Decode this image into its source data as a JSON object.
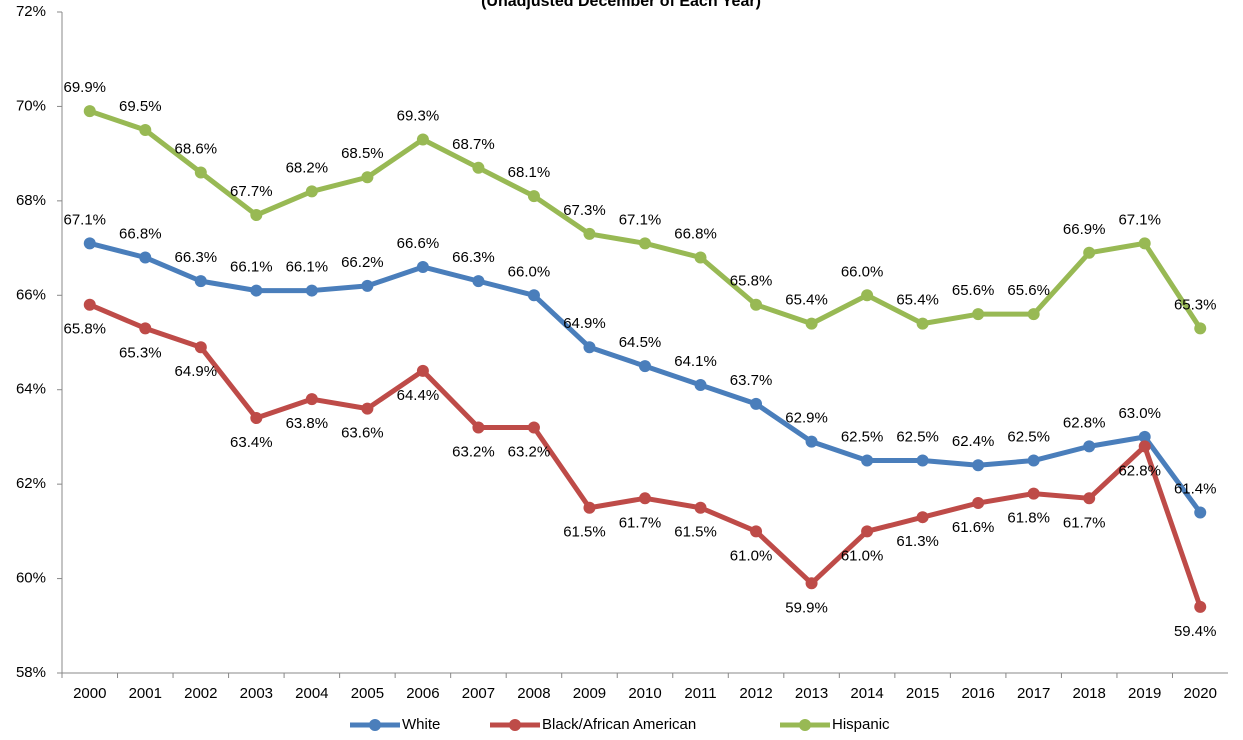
{
  "chart_data": {
    "type": "line",
    "title": "(Unadjusted December of Each Year)",
    "categories": [
      "2000",
      "2001",
      "2002",
      "2003",
      "2004",
      "2005",
      "2006",
      "2007",
      "2008",
      "2009",
      "2010",
      "2011",
      "2012",
      "2013",
      "2014",
      "2015",
      "2016",
      "2017",
      "2018",
      "2019",
      "2020"
    ],
    "series": [
      {
        "name": "White",
        "color": "#4a7ebb",
        "values": [
          67.1,
          66.8,
          66.3,
          66.1,
          66.1,
          66.2,
          66.6,
          66.3,
          66.0,
          64.9,
          64.5,
          64.1,
          63.7,
          62.9,
          62.5,
          62.5,
          62.4,
          62.5,
          62.8,
          63.0,
          61.4
        ],
        "value_labels": [
          "67.1%",
          "66.8%",
          "66.3%",
          "66.1%",
          "66.1%",
          "66.2%",
          "66.6%",
          "66.3%",
          "66.0%",
          "64.9%",
          "64.5%",
          "64.1%",
          "63.7%",
          "62.9%",
          "62.5%",
          "62.5%",
          "62.4%",
          "62.5%",
          "62.8%",
          "63.0%",
          "61.4%"
        ]
      },
      {
        "name": "Black/African American",
        "color": "#be4b48",
        "values": [
          65.8,
          65.3,
          64.9,
          63.4,
          63.8,
          63.6,
          64.4,
          63.2,
          63.2,
          61.5,
          61.7,
          61.5,
          61.0,
          59.9,
          61.0,
          61.3,
          61.6,
          61.8,
          61.7,
          62.8,
          59.4
        ],
        "value_labels": [
          "65.8%",
          "65.3%",
          "64.9%",
          "63.4%",
          "63.8%",
          "63.6%",
          "64.4%",
          "63.2%",
          "63.2%",
          "61.5%",
          "61.7%",
          "61.5%",
          "61.0%",
          "59.9%",
          "61.0%",
          "61.3%",
          "61.6%",
          "61.8%",
          "61.7%",
          "62.8%",
          "59.4%"
        ]
      },
      {
        "name": "Hispanic",
        "color": "#98b954",
        "values": [
          69.9,
          69.5,
          68.6,
          67.7,
          68.2,
          68.5,
          69.3,
          68.7,
          68.1,
          67.3,
          67.1,
          66.8,
          65.8,
          65.4,
          66.0,
          65.4,
          65.6,
          65.6,
          66.9,
          67.1,
          65.3
        ],
        "value_labels": [
          "69.9%",
          "69.5%",
          "68.6%",
          "67.7%",
          "68.2%",
          "68.5%",
          "69.3%",
          "68.7%",
          "68.1%",
          "67.3%",
          "67.1%",
          "66.8%",
          "65.8%",
          "65.4%",
          "66.0%",
          "65.4%",
          "65.6%",
          "65.6%",
          "66.9%",
          "67.1%",
          "65.3%"
        ]
      }
    ],
    "ylim": [
      58,
      72
    ],
    "yticks": [
      {
        "value": 58,
        "label": "58%"
      },
      {
        "value": 60,
        "label": "60%"
      },
      {
        "value": 62,
        "label": "62%"
      },
      {
        "value": 64,
        "label": "64%"
      },
      {
        "value": 66,
        "label": "66%"
      },
      {
        "value": 68,
        "label": "68%"
      },
      {
        "value": 70,
        "label": "70%"
      },
      {
        "value": 72,
        "label": "72%"
      }
    ],
    "legend": "bottom"
  }
}
